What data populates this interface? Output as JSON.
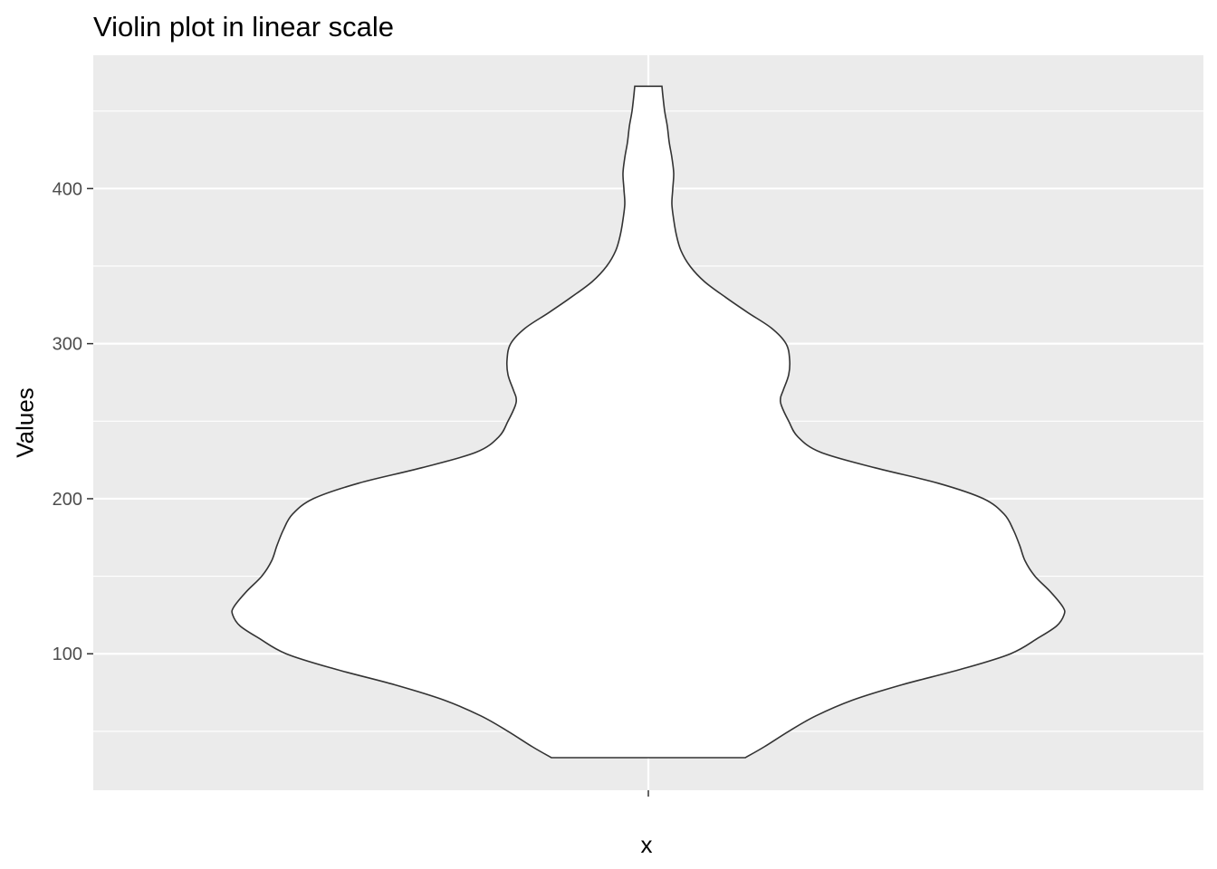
{
  "chart_data": {
    "type": "violin",
    "title": "Violin plot in linear scale",
    "xlabel": "x",
    "ylabel": "Values",
    "categories": [
      ""
    ],
    "ylim": [
      12,
      486
    ],
    "yticks": [
      100,
      200,
      300,
      400
    ],
    "grid": true,
    "background": "#ebebeb",
    "gridline_color": "#ffffff",
    "fill_color": "#ffffff",
    "outline_color": "#333333",
    "density": {
      "y": [
        33,
        40,
        50,
        60,
        70,
        80,
        90,
        100,
        110,
        118,
        125,
        130,
        140,
        150,
        160,
        170,
        180,
        190,
        200,
        210,
        220,
        230,
        240,
        250,
        260,
        265,
        270,
        280,
        290,
        300,
        310,
        320,
        330,
        340,
        350,
        360,
        370,
        380,
        390,
        400,
        410,
        420,
        430,
        440,
        450,
        460,
        466
      ],
      "half_width": [
        107,
        128,
        155,
        185,
        225,
        280,
        345,
        400,
        430,
        451,
        459,
        458,
        444,
        427,
        416,
        410,
        403,
        393,
        370,
        320,
        250,
        190,
        165,
        155,
        147,
        146,
        149,
        155,
        156,
        152,
        136,
        110,
        85,
        62,
        46,
        36,
        31,
        28,
        26,
        27,
        28,
        26,
        23,
        21,
        18,
        16,
        15
      ]
    }
  }
}
